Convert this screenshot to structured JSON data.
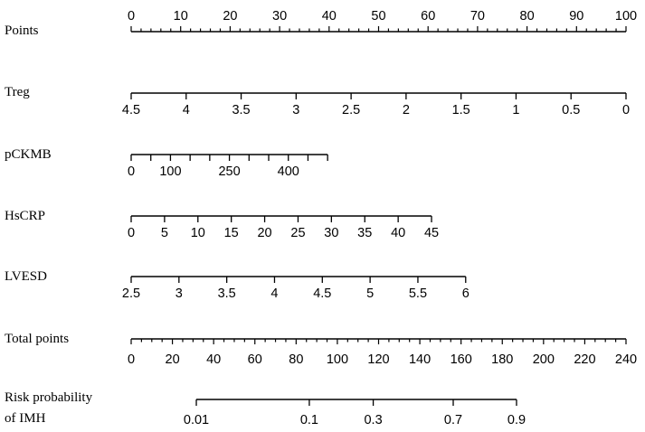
{
  "chart_data": {
    "type": "nomogram",
    "points_scale": [
      0,
      100
    ],
    "total_points_scale": [
      0,
      240
    ],
    "rows": [
      {
        "name": "Points",
        "kind": "points",
        "range": [
          0,
          100
        ],
        "major": [
          0,
          10,
          20,
          30,
          40,
          50,
          60,
          70,
          80,
          90,
          100
        ],
        "minor_step": 2,
        "labels": [
          "0",
          "10",
          "20",
          "30",
          "40",
          "50",
          "60",
          "70",
          "80",
          "90",
          "100"
        ]
      },
      {
        "name": "Treg",
        "kind": "variable",
        "range": [
          4.5,
          0
        ],
        "points_range": [
          0,
          100
        ],
        "ticks": [
          4.5,
          4,
          3.5,
          3,
          2.5,
          2,
          1.5,
          1,
          0.5,
          0
        ],
        "labels": [
          "4.5",
          "4",
          "3.5",
          "3",
          "2.5",
          "2",
          "1.5",
          "1",
          "0.5",
          "0"
        ]
      },
      {
        "name": "pCKMB",
        "kind": "variable",
        "range": [
          0,
          500
        ],
        "points_range": [
          0,
          39.7
        ],
        "ticks": [
          0,
          50,
          100,
          150,
          200,
          250,
          300,
          350,
          400,
          450,
          500
        ],
        "labeled_ticks": [
          0,
          100,
          250,
          400
        ],
        "labels": [
          "0",
          "100",
          "250",
          "400"
        ]
      },
      {
        "name": "HsCRP",
        "kind": "variable",
        "range": [
          0,
          45
        ],
        "points_range": [
          0,
          60.7
        ],
        "ticks": [
          0,
          5,
          10,
          15,
          20,
          25,
          30,
          35,
          40,
          45
        ],
        "labels": [
          "0",
          "5",
          "10",
          "15",
          "20",
          "25",
          "30",
          "35",
          "40",
          "45"
        ]
      },
      {
        "name": "LVESD",
        "kind": "variable",
        "range": [
          2.5,
          6
        ],
        "points_range": [
          0,
          67.6
        ],
        "ticks": [
          2.5,
          3,
          3.5,
          4,
          4.5,
          5,
          5.5,
          6
        ],
        "labels": [
          "2.5",
          "3",
          "3.5",
          "4",
          "4.5",
          "5",
          "5.5",
          "6"
        ]
      },
      {
        "name": "Total points",
        "kind": "total",
        "range": [
          0,
          240
        ],
        "major": [
          0,
          20,
          40,
          60,
          80,
          100,
          120,
          140,
          160,
          180,
          200,
          220,
          240
        ],
        "minor_step": 5,
        "labels": [
          "0",
          "20",
          "40",
          "60",
          "80",
          "100",
          "120",
          "140",
          "160",
          "180",
          "200",
          "220",
          "240"
        ]
      },
      {
        "name": "Risk probability",
        "name_line2": "of IMH",
        "kind": "risk",
        "ticks": [
          0.01,
          0.1,
          0.3,
          0.7,
          0.9
        ],
        "total_points_at_ticks": [
          31.6,
          86.4,
          117.4,
          156.2,
          186.9
        ],
        "labels": [
          "0.01",
          "0.1",
          "0.3",
          "0.7",
          "0.9"
        ]
      }
    ],
    "grid": false,
    "title": ""
  }
}
